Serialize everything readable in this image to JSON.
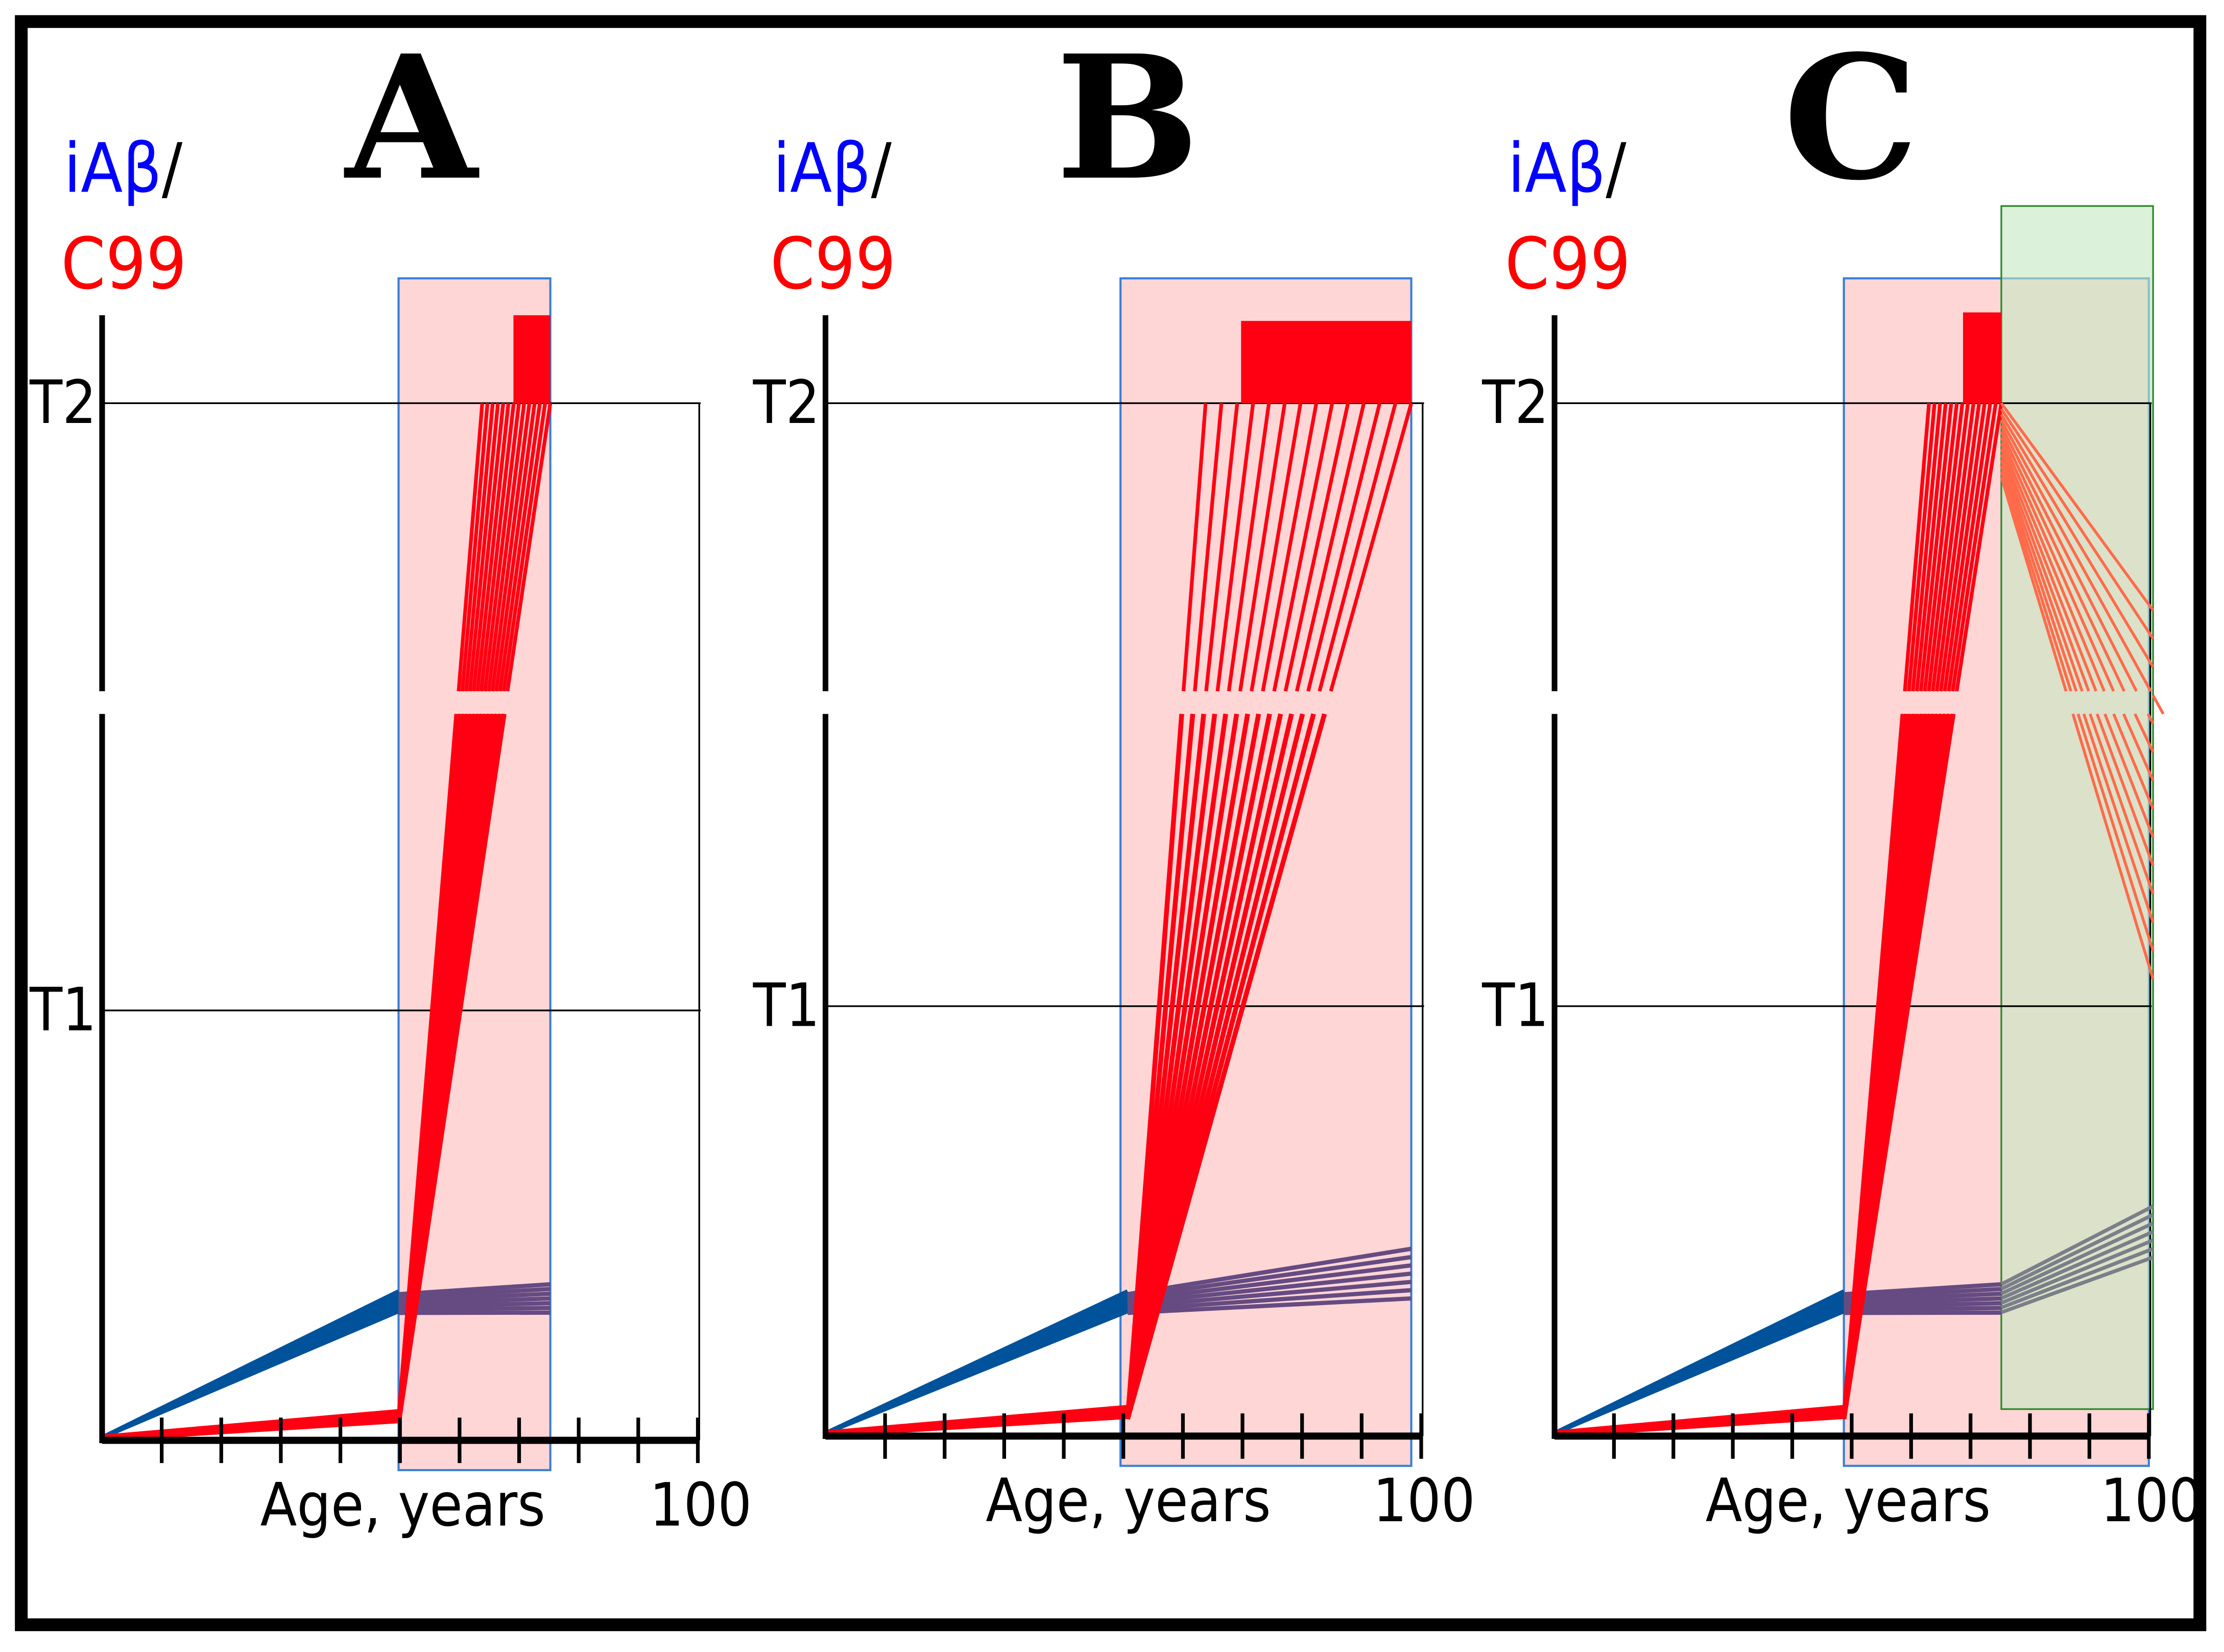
{
  "figure": {
    "panels": [
      {
        "letter": "A",
        "ylabel_top": "iAβ",
        "ylabel_slash": "/",
        "ylabel_bottom": "C99",
        "threshold_high": "T2",
        "threshold_low": "T1",
        "xlabel": "Age, years",
        "xmax_label": "100"
      },
      {
        "letter": "B",
        "ylabel_top": "iAβ",
        "ylabel_slash": "/",
        "ylabel_bottom": "C99",
        "threshold_high": "T2",
        "threshold_low": "T1",
        "xlabel": "Age, years",
        "xmax_label": "100"
      },
      {
        "letter": "C",
        "ylabel_top": "iAβ",
        "ylabel_slash": "/",
        "ylabel_bottom": "C99",
        "threshold_high": "T2",
        "threshold_low": "T1",
        "xlabel": "Age, years",
        "xmax_label": "100"
      }
    ],
    "colors": {
      "iabeta": "#0000ff",
      "c99": "#ff0000",
      "c99_curve": "#ff0012",
      "iabeta_curve": "#00529b",
      "iabeta_curve_late": "#654b82",
      "iabeta_curve_treated": "#7a7f88",
      "c99_curve_treated": "#ff6a4a",
      "shade_pink": "#ffd6d6",
      "shade_green": "#c5e8c0",
      "box_border": "#3a7fd5"
    }
  }
}
